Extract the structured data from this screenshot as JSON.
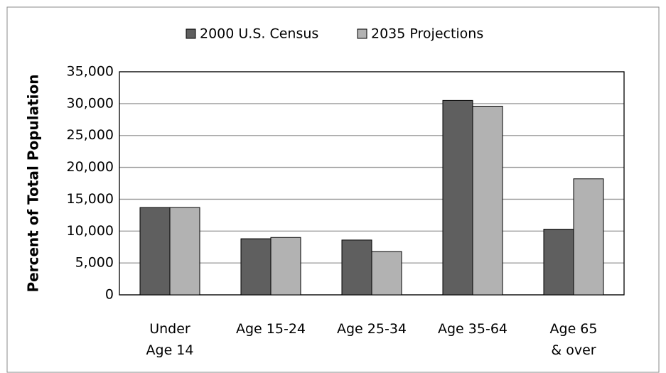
{
  "chart_data": {
    "type": "bar",
    "y_label": "Percent of Total Population",
    "categories": [
      "Under\nAge 14",
      "Age 15-24",
      "Age 25-34",
      "Age 35-64",
      "Age 65\n& over"
    ],
    "series": [
      {
        "name": "2000 U.S. Census",
        "color": "#5f5f5f",
        "values": [
          13700,
          8800,
          8600,
          30500,
          10300
        ]
      },
      {
        "name": "2035 Projections",
        "color": "#b2b2b2",
        "values": [
          13700,
          9000,
          6800,
          29600,
          18200
        ]
      }
    ],
    "ylim": [
      0,
      35000
    ],
    "yticks": [
      0,
      {
        "value": 5000,
        "label": "5,000"
      },
      {
        "value": 10000,
        "label": "10,000"
      },
      {
        "value": 15000,
        "label": "15,000"
      },
      {
        "value": 20000,
        "label": "20,000"
      },
      {
        "value": 25000,
        "label": "25,000"
      },
      {
        "value": 30000,
        "label": "30,000"
      },
      {
        "value": 35000,
        "label": "35,000"
      }
    ],
    "grid": true,
    "legend": "top"
  }
}
